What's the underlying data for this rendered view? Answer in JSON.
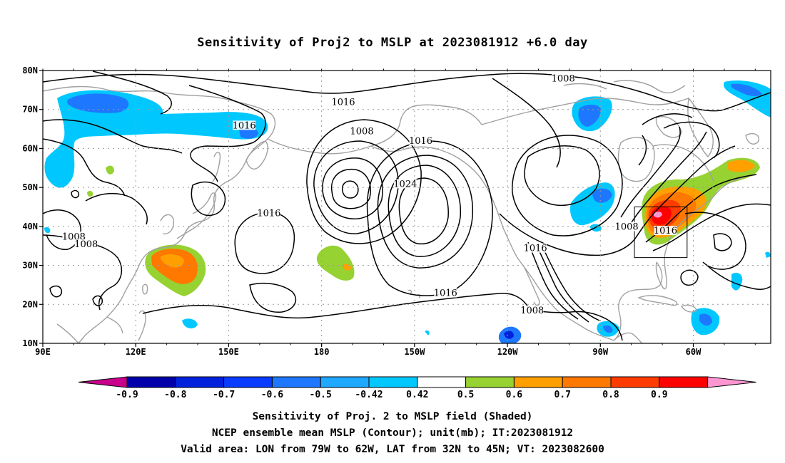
{
  "title": "Sensitivity of Proj2 to MSLP at 2023081912 +6.0 day",
  "map": {
    "lat_ticks": [
      "80N",
      "70N",
      "60N",
      "50N",
      "40N",
      "30N",
      "20N",
      "10N"
    ],
    "lon_ticks": [
      "90E",
      "120E",
      "150E",
      "180",
      "150W",
      "120W",
      "90W",
      "60W"
    ],
    "contour_labels": [
      {
        "text": "1008",
        "lon": -102,
        "lat": 77.5
      },
      {
        "text": "1016",
        "lon": -173,
        "lat": 71.5
      },
      {
        "text": "1016",
        "lon": 155,
        "lat": 65.5
      },
      {
        "text": "1008",
        "lon": -167,
        "lat": 64
      },
      {
        "text": "1016",
        "lon": -148,
        "lat": 61.5
      },
      {
        "text": "1024",
        "lon": -153,
        "lat": 50.5
      },
      {
        "text": "1016",
        "lon": 163,
        "lat": 43
      },
      {
        "text": "1008",
        "lon": 100,
        "lat": 37
      },
      {
        "text": "1008",
        "lon": 104,
        "lat": 35
      },
      {
        "text": "1016",
        "lon": -111,
        "lat": 34
      },
      {
        "text": "1016",
        "lon": -140,
        "lat": 22.5
      },
      {
        "text": "1008",
        "lon": -112,
        "lat": 18
      },
      {
        "text": "1008",
        "lon": -81.5,
        "lat": 39.5
      },
      {
        "text": "1016",
        "lon": -69,
        "lat": 38.5
      }
    ],
    "valid_box": {
      "lon_min": -79,
      "lon_max": -62,
      "lat_min": 32,
      "lat_max": 45
    }
  },
  "colorbar": {
    "labels": [
      "-0.9",
      "-0.8",
      "-0.7",
      "-0.6",
      "-0.5",
      "-0.42",
      "0.42",
      "0.5",
      "0.6",
      "0.7",
      "0.8",
      "0.9"
    ],
    "colors": {
      "lt_min": "#c8008c",
      "b1": "#0000aa",
      "b2": "#0022dd",
      "b3": "#0a3cff",
      "b4": "#1e78ff",
      "b5": "#1ea8ff",
      "b6": "#00c8ff",
      "b7": "#ffffff",
      "b8": "#96d232",
      "b9": "#ffa000",
      "b10": "#ff7800",
      "b11": "#ff3c00",
      "b12": "#ff0000",
      "gt_max": "#ff96d2"
    }
  },
  "caption": {
    "line1": "Sensitivity of Proj. 2 to MSLP field (Shaded)",
    "line2": "NCEP ensemble mean MSLP (Contour); unit(mb); IT:2023081912",
    "line3": "Valid area: LON from 79W to 62W, LAT from 32N to 45N; VT: 2023082600"
  }
}
